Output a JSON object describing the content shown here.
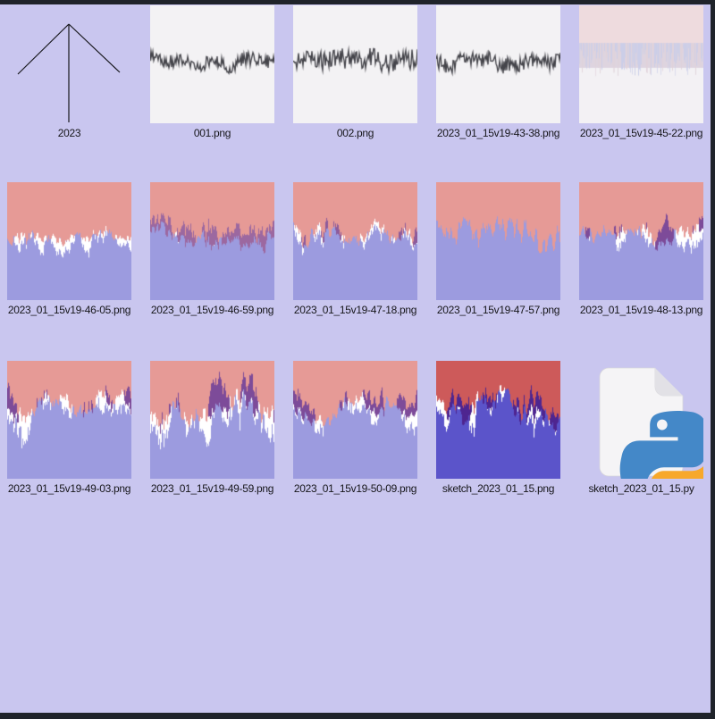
{
  "window": {
    "background_color": "#c9c6ef",
    "frame_color": "#1f232a"
  },
  "files": [
    {
      "label": "2023",
      "kind": "arrow",
      "style": {
        "stroke": "#17171c"
      }
    },
    {
      "label": "001.png",
      "kind": "line",
      "style": {
        "bg": "#f3f2f4",
        "line": "#45454b",
        "mid": 0.47,
        "amp": 9,
        "seed": 3
      }
    },
    {
      "label": "002.png",
      "kind": "line",
      "style": {
        "bg": "#f3f2f4",
        "line": "#45454b",
        "mid": 0.46,
        "amp": 13,
        "seed": 11
      }
    },
    {
      "label": "2023_01_15v19-43-38.png",
      "kind": "line",
      "style": {
        "bg": "#f3f2f4",
        "line": "#45454b",
        "mid": 0.5,
        "amp": 10,
        "seed": 12
      }
    },
    {
      "label": "2023_01_15v19-45-22.png",
      "kind": "fade",
      "style": {
        "top": "#eedbde",
        "band": "#ded4df",
        "bottom": "#f3f1f4",
        "fringe1": "#c9cde9",
        "fringe2": "#e0d2da",
        "seed": 13
      }
    },
    {
      "label": "2023_01_15v19-46-05.png",
      "kind": "split",
      "style": {
        "top": "#e69a96",
        "bottom": "#9c9bdf",
        "split": 0.47,
        "amp": 9,
        "hfw": 1.3,
        "lfw": 2.0,
        "wAmp": 15,
        "wp": 0.7,
        "pAmp": 0,
        "blob": 3,
        "seed": 21
      }
    },
    {
      "label": "2023_01_15v19-46-59.png",
      "kind": "split",
      "style": {
        "top": "#e69a96",
        "bottom": "#9c9bdf",
        "split": 0.45,
        "amp": 10,
        "hfw": 1.4,
        "lfw": 1.8,
        "wAmp": 7,
        "wp": 0.25,
        "pAmp": 15,
        "pp": 0.7,
        "pd": 7,
        "purple": "#9c68a0",
        "blob": 3,
        "seed": 22
      }
    },
    {
      "label": "2023_01_15v19-47-18.png",
      "kind": "split",
      "style": {
        "top": "#e69a96",
        "bottom": "#9c9bdf",
        "split": 0.46,
        "amp": 10,
        "hfw": 1.3,
        "lfw": 2.0,
        "wAmp": 13,
        "wp": 0.5,
        "pAmp": 11,
        "pp": 0.35,
        "pd": 6,
        "purple": "#8d5b9b",
        "blob": 3,
        "seed": 23
      }
    },
    {
      "label": "2023_01_15v19-47-57.png",
      "kind": "split",
      "style": {
        "top": "#e69a96",
        "bottom": "#9c9bdf",
        "split": 0.44,
        "amp": 13,
        "hfw": 1.7,
        "lfw": 1.2,
        "wAmp": 0,
        "pAmp": 0,
        "blob": 3,
        "seed": 24
      }
    },
    {
      "label": "2023_01_15v19-48-13.png",
      "kind": "split",
      "style": {
        "top": "#e69a96",
        "bottom": "#9c9bdf",
        "split": 0.43,
        "amp": 14,
        "hfw": 0.9,
        "lfw": 2.8,
        "wAmp": 20,
        "wp": 0.5,
        "pAmp": 18,
        "pp": 0.45,
        "pd": 8,
        "purple": "#7d4b99",
        "blob": 5,
        "seed": 25
      }
    },
    {
      "label": "2023_01_15v19-49-03.png",
      "kind": "split",
      "style": {
        "top": "#e69a96",
        "bottom": "#9c9bdf",
        "split": 0.4,
        "amp": 16,
        "hfw": 0.9,
        "lfw": 3.0,
        "wAmp": 26,
        "wp": 0.6,
        "pAmp": 20,
        "pp": 0.5,
        "pd": 9,
        "purple": "#7d4b99",
        "blob": 6,
        "seed": 31
      }
    },
    {
      "label": "2023_01_15v19-49-59.png",
      "kind": "split",
      "style": {
        "top": "#e69a96",
        "bottom": "#9c9bdf",
        "split": 0.42,
        "amp": 20,
        "hfw": 0.9,
        "lfw": 3.2,
        "wAmp": 32,
        "wp": 0.6,
        "pAmp": 26,
        "pp": 0.5,
        "pd": 10,
        "purple": "#7d4b99",
        "blob": 6,
        "seed": 32
      }
    },
    {
      "label": "2023_01_15v19-50-09.png",
      "kind": "split",
      "style": {
        "top": "#e69a96",
        "bottom": "#9c9bdf",
        "split": 0.4,
        "amp": 13,
        "hfw": 0.9,
        "lfw": 2.8,
        "wAmp": 22,
        "wp": 0.55,
        "pAmp": 14,
        "pp": 0.45,
        "pd": 8,
        "purple": "#7d4b99",
        "blob": 5,
        "seed": 33
      }
    },
    {
      "label": "sketch_2023_01_15.png",
      "kind": "split",
      "style": {
        "top": "#cd5a5a",
        "bottom": "#5b54ca",
        "split": 0.4,
        "amp": 15,
        "hfw": 1.0,
        "lfw": 2.6,
        "wAmp": 22,
        "wp": 0.55,
        "pAmp": 16,
        "pp": 0.5,
        "pd": 8,
        "purple": "#4e2590",
        "blob": 4,
        "seed": 34
      }
    },
    {
      "label": "sketch_2023_01_15.py",
      "kind": "pyfile",
      "style": {
        "paper": "#f5f4f6",
        "fold": "#e2e1e6",
        "border": "#d8d7db",
        "blue": "#4488c8",
        "yellow": "#f7a82b"
      }
    }
  ]
}
